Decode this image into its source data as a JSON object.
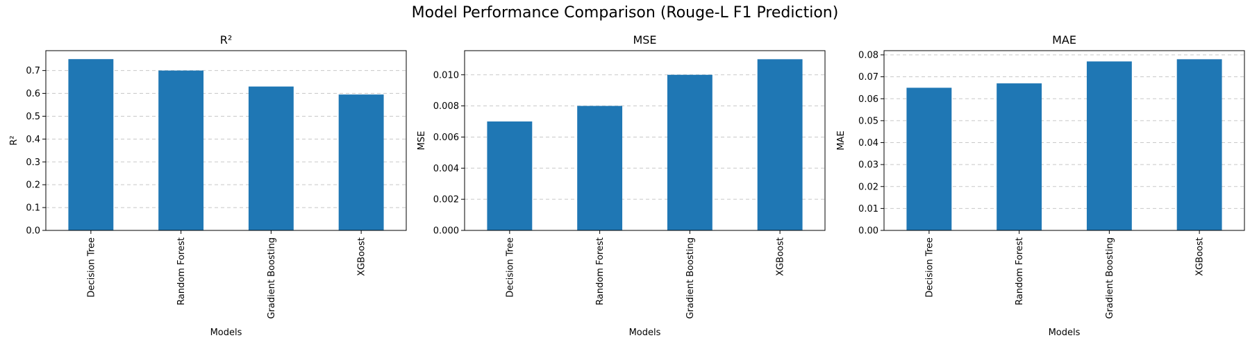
{
  "figure": {
    "title": "Model Performance Comparison (Rouge-L F1 Prediction)"
  },
  "style": {
    "bar_color": "#1f77b4",
    "grid_color": "#c8c8c8",
    "axis_color": "#000000"
  },
  "chart_data": [
    {
      "type": "bar",
      "title": "R²",
      "xlabel": "Models",
      "ylabel": "R²",
      "categories": [
        "Decision Tree",
        "Random Forest",
        "Gradient Boosting",
        "XGBoost"
      ],
      "values": [
        0.75,
        0.7,
        0.63,
        0.595
      ],
      "ylim": [
        0,
        0.787
      ],
      "yticks": [
        0.0,
        0.1,
        0.2,
        0.3,
        0.4,
        0.5,
        0.6,
        0.7
      ],
      "ytick_labels": [
        "0.0",
        "0.1",
        "0.2",
        "0.3",
        "0.4",
        "0.5",
        "0.6",
        "0.7"
      ],
      "grid": "y-dashed"
    },
    {
      "type": "bar",
      "title": "MSE",
      "xlabel": "Models",
      "ylabel": "MSE",
      "categories": [
        "Decision Tree",
        "Random Forest",
        "Gradient Boosting",
        "XGBoost"
      ],
      "values": [
        0.007,
        0.008,
        0.01,
        0.011
      ],
      "ylim": [
        0,
        0.01155
      ],
      "yticks": [
        0.0,
        0.002,
        0.004,
        0.006,
        0.008,
        0.01
      ],
      "ytick_labels": [
        "0.000",
        "0.002",
        "0.004",
        "0.006",
        "0.008",
        "0.010"
      ],
      "grid": "y-dashed"
    },
    {
      "type": "bar",
      "title": "MAE",
      "xlabel": "Models",
      "ylabel": "MAE",
      "categories": [
        "Decision Tree",
        "Random Forest",
        "Gradient Boosting",
        "XGBoost"
      ],
      "values": [
        0.065,
        0.067,
        0.077,
        0.078
      ],
      "ylim": [
        0,
        0.0819
      ],
      "yticks": [
        0.0,
        0.01,
        0.02,
        0.03,
        0.04,
        0.05,
        0.06,
        0.07,
        0.08
      ],
      "ytick_labels": [
        "0.00",
        "0.01",
        "0.02",
        "0.03",
        "0.04",
        "0.05",
        "0.06",
        "0.07",
        "0.08"
      ],
      "grid": "y-dashed"
    }
  ]
}
